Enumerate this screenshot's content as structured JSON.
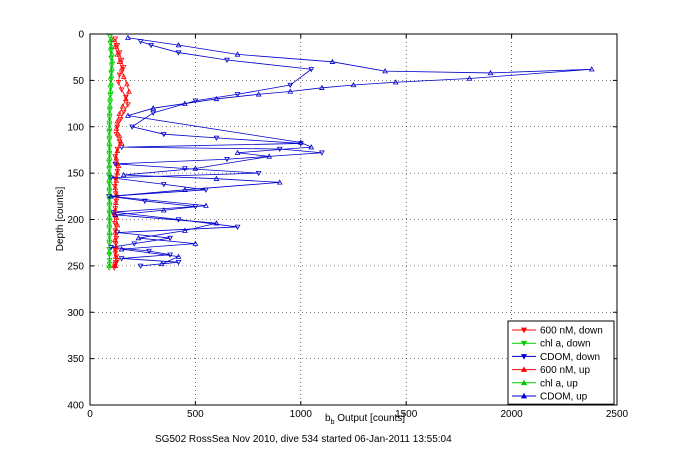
{
  "chart_data": {
    "type": "scatter",
    "xlabel_main": "b",
    "xlabel_sub": "b",
    "xlabel_rest": " Output [counts]",
    "ylabel": "Depth [counts]",
    "caption": "SG502 RossSea Nov 2010, dive 534 started 06-Jan-2011 13:55:04",
    "xlim": [
      0,
      2500
    ],
    "ylim": [
      0,
      400
    ],
    "y_reversed": true,
    "grid": true,
    "legend_position": "bottom-right",
    "xticks": [
      0,
      500,
      1000,
      1500,
      2000,
      2500
    ],
    "yticks": [
      0,
      50,
      100,
      150,
      200,
      250,
      300,
      350,
      400
    ],
    "series": [
      {
        "name": "600 nM, down",
        "color": "#ff0000",
        "marker": "triangle-down",
        "x": [
          120,
          130,
          140,
          150,
          160,
          140,
          135,
          150,
          170,
          180,
          160,
          145,
          130,
          125,
          140,
          130,
          120,
          125,
          130,
          120,
          118,
          122,
          125,
          120,
          115,
          118,
          120,
          125,
          122,
          118,
          120,
          125,
          130,
          122,
          120,
          118,
          115
        ],
        "y": [
          5,
          12,
          20,
          28,
          36,
          44,
          52,
          60,
          68,
          76,
          84,
          92,
          100,
          108,
          116,
          124,
          132,
          140,
          148,
          156,
          164,
          172,
          180,
          188,
          196,
          204,
          212,
          220,
          226,
          232,
          236,
          240,
          244,
          246,
          248,
          250,
          252
        ]
      },
      {
        "name": "chl a, down",
        "color": "#00cc00",
        "marker": "triangle-down",
        "x": [
          95,
          96,
          98,
          100,
          102,
          100,
          98,
          97,
          96,
          95,
          94,
          93,
          92,
          91,
          92,
          93,
          92,
          90,
          91,
          92,
          93,
          92,
          91,
          92,
          93,
          94,
          92,
          93,
          92,
          91,
          92,
          93,
          92,
          91
        ],
        "y": [
          3,
          10,
          18,
          26,
          34,
          42,
          50,
          58,
          66,
          74,
          82,
          90,
          98,
          106,
          114,
          122,
          130,
          138,
          146,
          154,
          162,
          170,
          178,
          186,
          194,
          202,
          210,
          218,
          226,
          232,
          238,
          244,
          248,
          252
        ]
      },
      {
        "name": "CDOM, down",
        "color": "#0000cc",
        "marker": "triangle-down",
        "x": [
          240,
          290,
          420,
          650,
          1050,
          950,
          700,
          500,
          300,
          200,
          350,
          600,
          1000,
          150,
          900,
          1100,
          650,
          120,
          450,
          800,
          100,
          350,
          550,
          90,
          260,
          500,
          110,
          420,
          700,
          130,
          380,
          210,
          100,
          280,
          380,
          150,
          420,
          240
        ],
        "y": [
          8,
          12,
          20,
          28,
          38,
          55,
          65,
          72,
          85,
          100,
          108,
          112,
          118,
          122,
          124,
          128,
          135,
          140,
          145,
          150,
          155,
          162,
          168,
          175,
          180,
          186,
          192,
          200,
          208,
          214,
          220,
          226,
          230,
          234,
          238,
          242,
          246,
          250
        ]
      },
      {
        "name": "600 nM, up",
        "color": "#ff0000",
        "marker": "triangle-up",
        "x": [
          110,
          120,
          130,
          140,
          150,
          160,
          175,
          185,
          170,
          155,
          140,
          130,
          125,
          140,
          150,
          130,
          125,
          135,
          130,
          125,
          120,
          128,
          122,
          120,
          125,
          130,
          120,
          118,
          125,
          122,
          120
        ],
        "y": [
          6,
          14,
          22,
          30,
          38,
          46,
          54,
          62,
          70,
          78,
          86,
          94,
          102,
          110,
          118,
          126,
          134,
          142,
          150,
          158,
          166,
          174,
          182,
          190,
          198,
          206,
          214,
          222,
          230,
          240,
          250
        ]
      },
      {
        "name": "chl a, up",
        "color": "#00cc00",
        "marker": "triangle-up",
        "x": [
          100,
          102,
          104,
          106,
          104,
          102,
          100,
          98,
          96,
          94,
          93,
          92,
          93,
          92,
          91,
          92,
          93,
          92,
          91,
          90,
          91,
          92,
          93,
          92,
          91,
          92,
          93,
          92,
          91,
          92
        ],
        "y": [
          5,
          13,
          21,
          29,
          37,
          45,
          53,
          61,
          69,
          77,
          85,
          93,
          101,
          109,
          117,
          125,
          133,
          141,
          149,
          157,
          165,
          173,
          181,
          189,
          197,
          205,
          213,
          221,
          235,
          250
        ]
      },
      {
        "name": "CDOM, up",
        "color": "#0000cc",
        "marker": "triangle-up",
        "x": [
          180,
          420,
          700,
          1150,
          1400,
          1900,
          2380,
          1800,
          1450,
          1250,
          1100,
          950,
          800,
          600,
          450,
          300,
          180,
          1000,
          1050,
          700,
          850,
          500,
          160,
          600,
          900,
          450,
          100,
          550,
          350,
          120,
          600,
          450,
          230,
          500,
          150,
          420,
          340
        ],
        "y": [
          4,
          12,
          22,
          30,
          40,
          42,
          38,
          48,
          52,
          55,
          58,
          62,
          65,
          70,
          75,
          80,
          88,
          117,
          122,
          128,
          132,
          145,
          152,
          156,
          160,
          168,
          175,
          185,
          190,
          195,
          204,
          212,
          220,
          226,
          232,
          240,
          248
        ]
      }
    ]
  }
}
